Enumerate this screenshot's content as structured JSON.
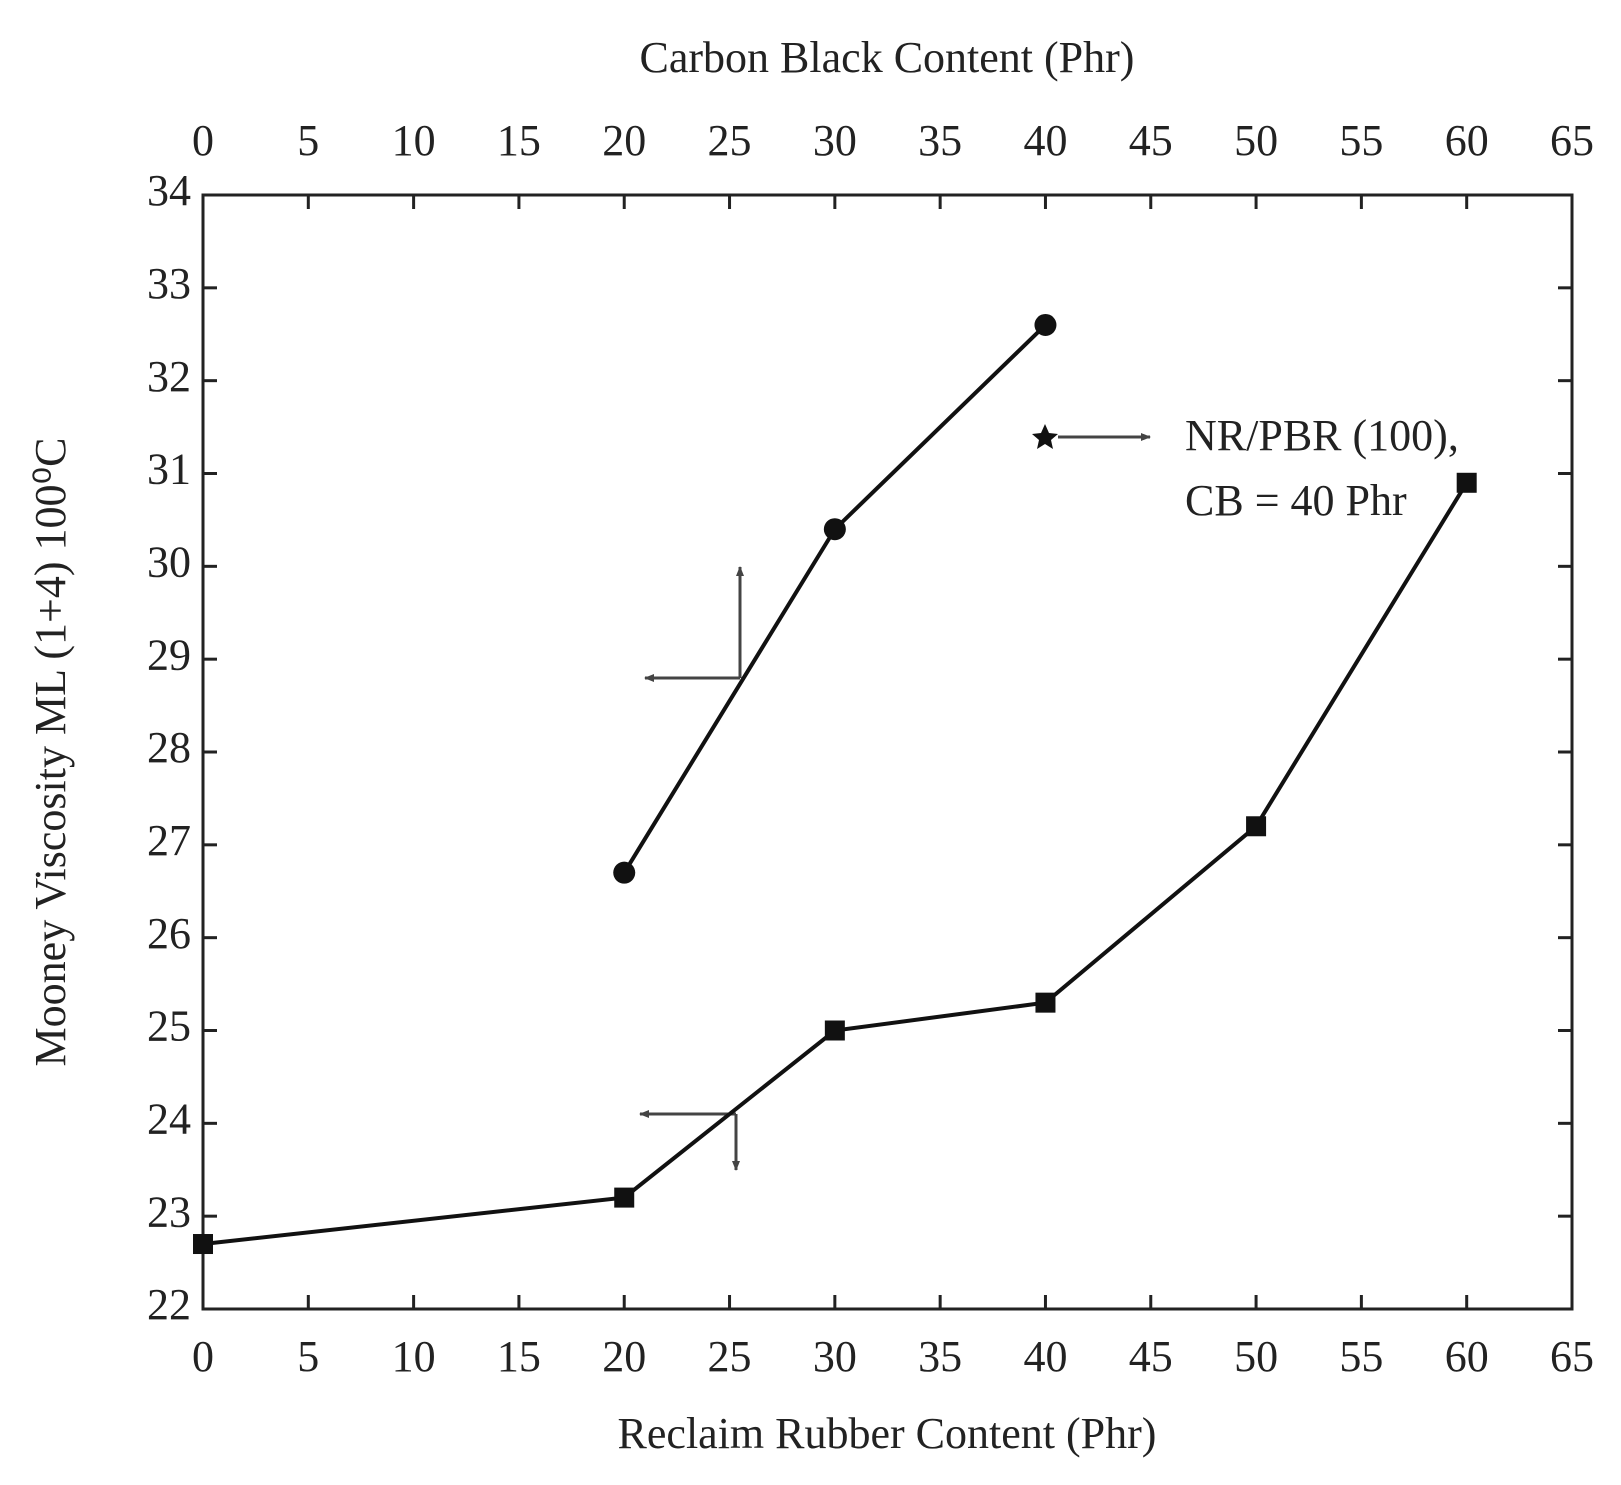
{
  "chart_data": {
    "type": "line",
    "xlabel": "Reclaim Rubber Content (Phr)",
    "x2label": "Carbon Black Content (Phr)",
    "ylabel": "Mooney Viscosity ML (1+4) 100⁰C",
    "xlim": [
      0,
      65
    ],
    "xticks": [
      0,
      5,
      10,
      15,
      20,
      25,
      30,
      35,
      40,
      45,
      50,
      55,
      60,
      65
    ],
    "x2lim": [
      0,
      65
    ],
    "x2ticks": [
      0,
      5,
      10,
      15,
      20,
      25,
      30,
      35,
      40,
      45,
      50,
      55,
      60,
      65
    ],
    "ylim": [
      22,
      34
    ],
    "yticks": [
      22,
      23,
      24,
      25,
      26,
      27,
      28,
      29,
      30,
      31,
      32,
      33,
      34
    ],
    "series": [
      {
        "color": "#111111",
        "marker": "circle",
        "axis": "x2",
        "x": [
          20,
          30,
          40
        ],
        "values": [
          26.7,
          30.4,
          32.6
        ]
      },
      {
        "color": "#111111",
        "marker": "square",
        "x": [
          0,
          20,
          30,
          40,
          50,
          60
        ],
        "values": [
          22.7,
          23.2,
          25.0,
          25.3,
          27.2,
          30.9
        ]
      }
    ],
    "annotation": [
      "NR/PBR (100),",
      "CB = 40 Phr"
    ]
  }
}
